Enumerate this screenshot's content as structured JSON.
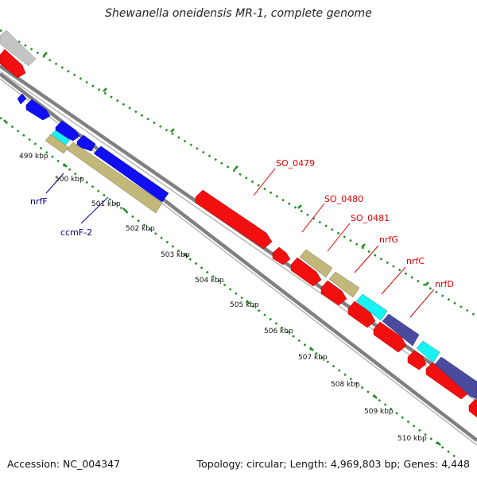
{
  "title": "Shewanella oneidensis MR-1, complete genome",
  "accession": "Accession: NC_004347",
  "summary": "Topology: circular; Length: 4,969,803 bp; Genes: 4,448",
  "colors": {
    "backbone": "#808080",
    "tick": "#1e8c1e",
    "red_gene": "#f20f0f",
    "blue_gene": "#0f0ff2",
    "olive_gene": "#c2b87a",
    "cyan_gene": "#19f2f2",
    "navy_gene": "#4a4a9e",
    "grey_gene": "#c4c4c4",
    "label_red": "#e00000",
    "label_blue": "#00008c"
  },
  "ticks": [
    {
      "label": "499 kbp",
      "kbp": 499
    },
    {
      "label": "500 kbp",
      "kbp": 500
    },
    {
      "label": "501 kbp",
      "kbp": 501
    },
    {
      "label": "502 kbp",
      "kbp": 502
    },
    {
      "label": "503 kbp",
      "kbp": 503
    },
    {
      "label": "504 kbp",
      "kbp": 504
    },
    {
      "label": "505 kbp",
      "kbp": 505
    },
    {
      "label": "506 kbp",
      "kbp": 506
    },
    {
      "label": "507 kbp",
      "kbp": 507
    },
    {
      "label": "508 kbp",
      "kbp": 508
    },
    {
      "label": "509 kbp",
      "kbp": 509
    },
    {
      "label": "510 kbp",
      "kbp": 510
    }
  ],
  "gene_labels": [
    {
      "label": "nrfF",
      "color": "label_blue"
    },
    {
      "label": "ccmF-2",
      "color": "label_blue"
    },
    {
      "label": "SO_0479",
      "color": "label_red"
    },
    {
      "label": "SO_0480",
      "color": "label_red"
    },
    {
      "label": "SO_0481",
      "color": "label_red"
    },
    {
      "label": "nrfG",
      "color": "label_red"
    },
    {
      "label": "nrfC",
      "color": "label_red"
    },
    {
      "label": "nrfD",
      "color": "label_red"
    }
  ]
}
